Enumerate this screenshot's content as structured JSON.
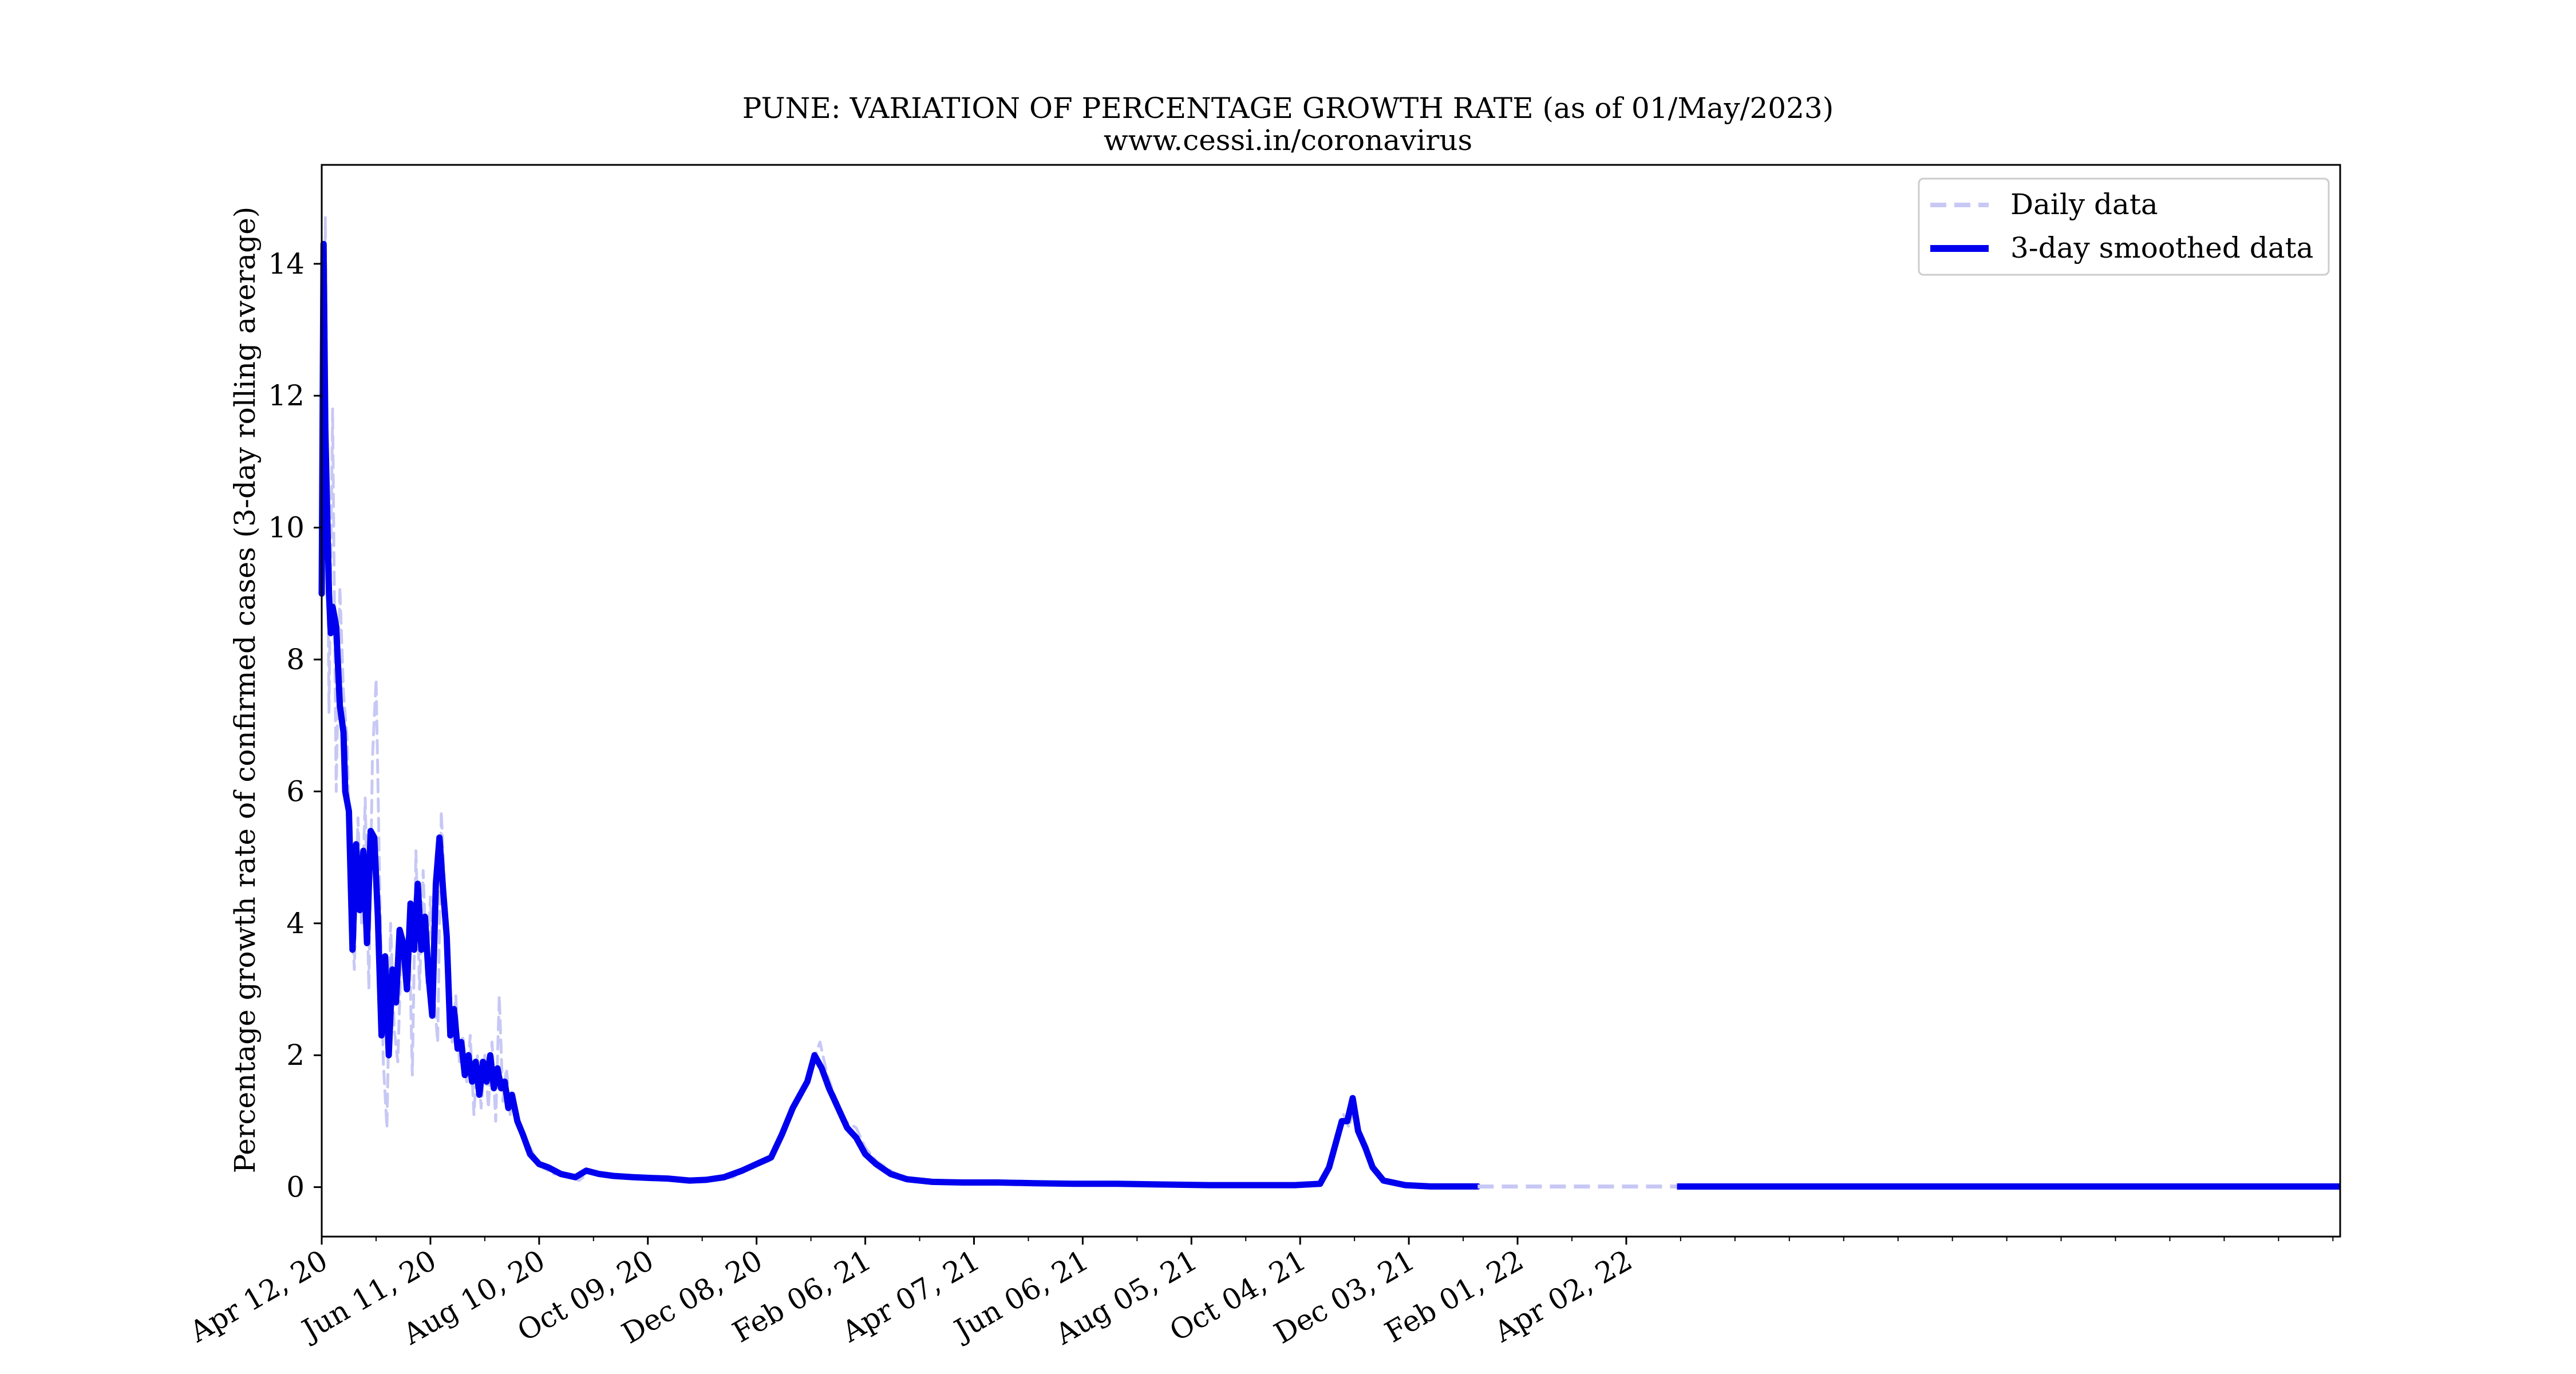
{
  "chart_data": {
    "type": "line",
    "title": "PUNE: VARIATION OF PERCENTAGE GROWTH RATE (as of 01/May/2023)",
    "subtitle": "www.cessi.in/coronavirus",
    "xlabel": "",
    "ylabel": "Percentage growth rate of confirmed cases (3-day rolling average)",
    "x_start": "2020-04-12",
    "x_end": "2023-05-01",
    "xlim": [
      "2020-04-12",
      "2023-05-01"
    ],
    "ylim": [
      -0.75,
      15.5
    ],
    "yticks": [
      0,
      2,
      4,
      6,
      8,
      10,
      12,
      14
    ],
    "x_tick_labels": [
      "Apr 12, 20",
      "Jun 11, 20",
      "Aug 10, 20",
      "Oct 09, 20",
      "Dec 08, 20",
      "Feb 06, 21",
      "Apr 07, 21",
      "Jun 06, 21",
      "Aug 05, 21",
      "Oct 04, 21",
      "Dec 03, 21",
      "Feb 01, 22",
      "Apr 02, 22"
    ],
    "x_tick_dates": [
      "2020-04-12",
      "2020-06-11",
      "2020-08-10",
      "2020-10-09",
      "2020-12-08",
      "2021-02-06",
      "2021-04-07",
      "2021-06-06",
      "2021-08-05",
      "2021-10-04",
      "2021-12-03",
      "2022-02-01",
      "2022-04-02"
    ],
    "grid": false,
    "legend_position": "top-right",
    "series": [
      {
        "name": "Daily data",
        "style": "dashed",
        "color": "#c8c8f5",
        "points": [
          [
            "2020-04-12",
            9.5
          ],
          [
            "2020-04-14",
            14.7
          ],
          [
            "2020-04-16",
            7.2
          ],
          [
            "2020-04-18",
            11.8
          ],
          [
            "2020-04-20",
            6.0
          ],
          [
            "2020-04-22",
            9.1
          ],
          [
            "2020-04-24",
            7.5
          ],
          [
            "2020-04-26",
            6.8
          ],
          [
            "2020-04-28",
            4.4
          ],
          [
            "2020-04-30",
            3.3
          ],
          [
            "2020-05-02",
            5.6
          ],
          [
            "2020-05-04",
            4.0
          ],
          [
            "2020-05-06",
            5.9
          ],
          [
            "2020-05-08",
            3.0
          ],
          [
            "2020-05-10",
            6.5
          ],
          [
            "2020-05-12",
            7.7
          ],
          [
            "2020-05-14",
            4.6
          ],
          [
            "2020-05-16",
            1.9
          ],
          [
            "2020-05-18",
            0.9
          ],
          [
            "2020-05-20",
            4.0
          ],
          [
            "2020-05-22",
            2.4
          ],
          [
            "2020-05-24",
            1.9
          ],
          [
            "2020-05-26",
            3.7
          ],
          [
            "2020-05-28",
            3.3
          ],
          [
            "2020-05-30",
            4.2
          ],
          [
            "2020-06-01",
            1.7
          ],
          [
            "2020-06-03",
            5.1
          ],
          [
            "2020-06-05",
            3.0
          ],
          [
            "2020-06-07",
            4.8
          ],
          [
            "2020-06-09",
            3.1
          ],
          [
            "2020-06-11",
            4.4
          ],
          [
            "2020-06-13",
            2.9
          ],
          [
            "2020-06-15",
            2.2
          ],
          [
            "2020-06-17",
            5.7
          ],
          [
            "2020-06-19",
            4.4
          ],
          [
            "2020-06-21",
            3.6
          ],
          [
            "2020-06-23",
            2.2
          ],
          [
            "2020-06-25",
            2.9
          ],
          [
            "2020-06-27",
            1.9
          ],
          [
            "2020-06-29",
            2.3
          ],
          [
            "2020-07-01",
            1.6
          ],
          [
            "2020-07-03",
            2.3
          ],
          [
            "2020-07-05",
            1.1
          ],
          [
            "2020-07-07",
            2.0
          ],
          [
            "2020-07-09",
            1.2
          ],
          [
            "2020-07-11",
            2.0
          ],
          [
            "2020-07-13",
            1.2
          ],
          [
            "2020-07-15",
            2.2
          ],
          [
            "2020-07-17",
            1.0
          ],
          [
            "2020-07-19",
            2.9
          ],
          [
            "2020-07-21",
            1.3
          ],
          [
            "2020-07-23",
            1.8
          ],
          [
            "2020-07-25",
            1.1
          ],
          [
            "2020-07-27",
            1.4
          ],
          [
            "2020-07-30",
            1.0
          ],
          [
            "2020-08-03",
            0.7
          ],
          [
            "2020-08-07",
            0.5
          ],
          [
            "2020-08-12",
            0.3
          ],
          [
            "2020-08-18",
            0.2
          ],
          [
            "2020-08-25",
            0.2
          ],
          [
            "2020-09-01",
            0.1
          ],
          [
            "2020-09-08",
            0.25
          ],
          [
            "2020-09-15",
            0.2
          ],
          [
            "2020-09-25",
            0.15
          ],
          [
            "2020-10-05",
            0.15
          ],
          [
            "2020-10-15",
            0.12
          ],
          [
            "2020-10-25",
            0.12
          ],
          [
            "2020-11-05",
            0.1
          ],
          [
            "2020-11-15",
            0.12
          ],
          [
            "2020-11-25",
            0.15
          ],
          [
            "2020-12-05",
            0.3
          ],
          [
            "2020-12-15",
            0.4
          ],
          [
            "2020-12-22",
            0.8
          ],
          [
            "2020-12-28",
            1.2
          ],
          [
            "2021-01-03",
            1.5
          ],
          [
            "2021-01-08",
            1.9
          ],
          [
            "2021-01-12",
            2.2
          ],
          [
            "2021-01-16",
            1.7
          ],
          [
            "2021-01-20",
            1.4
          ],
          [
            "2021-01-26",
            1.0
          ],
          [
            "2021-02-01",
            0.9
          ],
          [
            "2021-02-06",
            0.6
          ],
          [
            "2021-02-12",
            0.4
          ],
          [
            "2021-02-20",
            0.25
          ],
          [
            "2021-03-01",
            0.12
          ],
          [
            "2021-03-15",
            0.08
          ],
          [
            "2021-04-01",
            0.07
          ],
          [
            "2021-04-20",
            0.07
          ],
          [
            "2021-05-10",
            0.06
          ],
          [
            "2021-06-01",
            0.05
          ],
          [
            "2021-06-25",
            0.05
          ],
          [
            "2021-07-20",
            0.04
          ],
          [
            "2021-08-15",
            0.03
          ],
          [
            "2021-09-10",
            0.03
          ],
          [
            "2021-10-01",
            0.03
          ],
          [
            "2021-10-15",
            0.05
          ],
          [
            "2021-10-21",
            0.4
          ],
          [
            "2021-10-25",
            0.8
          ],
          [
            "2021-10-28",
            1.1
          ],
          [
            "2021-10-31",
            0.9
          ],
          [
            "2021-11-03",
            1.3
          ],
          [
            "2021-11-06",
            0.8
          ],
          [
            "2021-11-10",
            0.6
          ],
          [
            "2021-11-14",
            0.3
          ],
          [
            "2021-11-20",
            0.1
          ],
          [
            "2021-12-01",
            0.03
          ],
          [
            "2021-12-15",
            0.01
          ],
          [
            "2022-01-01",
            0.01
          ],
          [
            "2022-01-10",
            0.01
          ]
        ]
      },
      {
        "name": "3-day smoothed data",
        "style": "solid",
        "color": "#0000ee",
        "points": [
          [
            "2020-04-12",
            9.0
          ],
          [
            "2020-04-13",
            14.3
          ],
          [
            "2020-04-14",
            11.5
          ],
          [
            "2020-04-16",
            9.0
          ],
          [
            "2020-04-17",
            8.4
          ],
          [
            "2020-04-18",
            8.8
          ],
          [
            "2020-04-20",
            8.5
          ],
          [
            "2020-04-22",
            7.3
          ],
          [
            "2020-04-24",
            6.9
          ],
          [
            "2020-04-25",
            6.0
          ],
          [
            "2020-04-27",
            5.7
          ],
          [
            "2020-04-29",
            3.6
          ],
          [
            "2020-05-01",
            5.2
          ],
          [
            "2020-05-03",
            4.2
          ],
          [
            "2020-05-05",
            5.1
          ],
          [
            "2020-05-07",
            3.7
          ],
          [
            "2020-05-09",
            5.4
          ],
          [
            "2020-05-11",
            5.3
          ],
          [
            "2020-05-13",
            4.1
          ],
          [
            "2020-05-15",
            2.3
          ],
          [
            "2020-05-17",
            3.5
          ],
          [
            "2020-05-19",
            2.0
          ],
          [
            "2020-05-21",
            3.3
          ],
          [
            "2020-05-23",
            2.8
          ],
          [
            "2020-05-25",
            3.9
          ],
          [
            "2020-05-27",
            3.7
          ],
          [
            "2020-05-29",
            3.0
          ],
          [
            "2020-05-31",
            4.3
          ],
          [
            "2020-06-02",
            3.6
          ],
          [
            "2020-06-04",
            4.6
          ],
          [
            "2020-06-06",
            3.6
          ],
          [
            "2020-06-08",
            4.1
          ],
          [
            "2020-06-10",
            3.2
          ],
          [
            "2020-06-12",
            2.6
          ],
          [
            "2020-06-14",
            4.6
          ],
          [
            "2020-06-16",
            5.3
          ],
          [
            "2020-06-18",
            4.5
          ],
          [
            "2020-06-20",
            3.8
          ],
          [
            "2020-06-22",
            2.3
          ],
          [
            "2020-06-24",
            2.7
          ],
          [
            "2020-06-26",
            2.1
          ],
          [
            "2020-06-28",
            2.2
          ],
          [
            "2020-06-30",
            1.7
          ],
          [
            "2020-07-02",
            2.0
          ],
          [
            "2020-07-04",
            1.6
          ],
          [
            "2020-07-06",
            1.9
          ],
          [
            "2020-07-08",
            1.4
          ],
          [
            "2020-07-10",
            1.9
          ],
          [
            "2020-07-12",
            1.6
          ],
          [
            "2020-07-14",
            2.0
          ],
          [
            "2020-07-16",
            1.5
          ],
          [
            "2020-07-18",
            1.8
          ],
          [
            "2020-07-20",
            1.5
          ],
          [
            "2020-07-22",
            1.6
          ],
          [
            "2020-07-24",
            1.2
          ],
          [
            "2020-07-26",
            1.4
          ],
          [
            "2020-07-29",
            1.0
          ],
          [
            "2020-08-01",
            0.8
          ],
          [
            "2020-08-05",
            0.5
          ],
          [
            "2020-08-10",
            0.35
          ],
          [
            "2020-08-15",
            0.3
          ],
          [
            "2020-08-22",
            0.2
          ],
          [
            "2020-08-30",
            0.15
          ],
          [
            "2020-09-05",
            0.25
          ],
          [
            "2020-09-12",
            0.2
          ],
          [
            "2020-09-20",
            0.17
          ],
          [
            "2020-10-01",
            0.15
          ],
          [
            "2020-10-10",
            0.14
          ],
          [
            "2020-10-20",
            0.13
          ],
          [
            "2020-11-01",
            0.1
          ],
          [
            "2020-11-10",
            0.11
          ],
          [
            "2020-11-20",
            0.15
          ],
          [
            "2020-11-30",
            0.25
          ],
          [
            "2020-12-08",
            0.35
          ],
          [
            "2020-12-16",
            0.45
          ],
          [
            "2020-12-22",
            0.8
          ],
          [
            "2020-12-28",
            1.2
          ],
          [
            "2021-01-01",
            1.4
          ],
          [
            "2021-01-05",
            1.6
          ],
          [
            "2021-01-09",
            2.0
          ],
          [
            "2021-01-13",
            1.8
          ],
          [
            "2021-01-17",
            1.5
          ],
          [
            "2021-01-22",
            1.2
          ],
          [
            "2021-01-27",
            0.9
          ],
          [
            "2021-02-01",
            0.75
          ],
          [
            "2021-02-06",
            0.5
          ],
          [
            "2021-02-12",
            0.35
          ],
          [
            "2021-02-20",
            0.2
          ],
          [
            "2021-03-01",
            0.12
          ],
          [
            "2021-03-15",
            0.08
          ],
          [
            "2021-04-01",
            0.07
          ],
          [
            "2021-04-20",
            0.07
          ],
          [
            "2021-05-10",
            0.06
          ],
          [
            "2021-06-01",
            0.05
          ],
          [
            "2021-06-25",
            0.05
          ],
          [
            "2021-07-20",
            0.04
          ],
          [
            "2021-08-15",
            0.03
          ],
          [
            "2021-09-10",
            0.03
          ],
          [
            "2021-10-01",
            0.03
          ],
          [
            "2021-10-15",
            0.05
          ],
          [
            "2021-10-20",
            0.3
          ],
          [
            "2021-10-24",
            0.7
          ],
          [
            "2021-10-27",
            1.0
          ],
          [
            "2021-10-30",
            1.0
          ],
          [
            "2021-11-02",
            1.35
          ],
          [
            "2021-11-05",
            0.85
          ],
          [
            "2021-11-09",
            0.6
          ],
          [
            "2021-11-13",
            0.3
          ],
          [
            "2021-11-19",
            0.1
          ],
          [
            "2021-12-01",
            0.03
          ],
          [
            "2021-12-15",
            0.01
          ],
          [
            "2022-01-01",
            0.01
          ],
          [
            "2022-01-10",
            0.01
          ]
        ]
      }
    ],
    "late_segments": [
      {
        "series": "Daily data",
        "from": "2022-01-10",
        "to": "2022-04-30",
        "value": 0.01
      },
      {
        "series": "3-day smoothed data",
        "from": "2022-04-30",
        "to": "2023-05-01",
        "value": 0.01
      }
    ]
  }
}
